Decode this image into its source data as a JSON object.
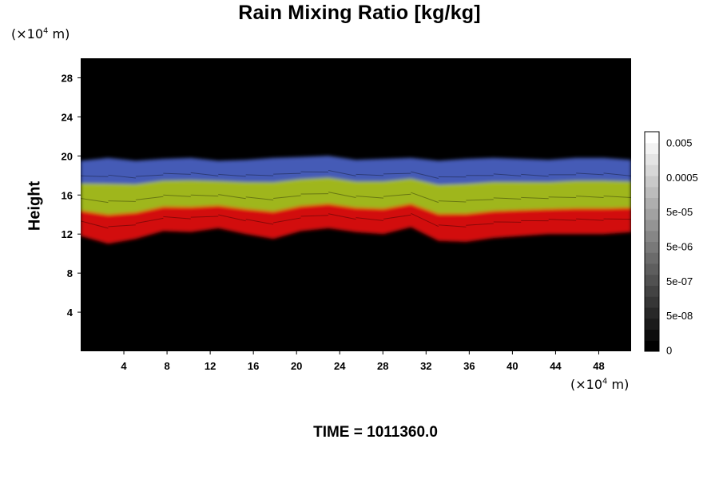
{
  "chart_data": {
    "type": "heatmap",
    "title": "Rain Mixing Ratio [kg/kg]",
    "ylabel": "Height",
    "xlabel": "",
    "x_unit_prefix": "(×10",
    "x_unit_exp": "4",
    "x_unit_suffix": " m)",
    "y_unit_prefix": "(×10",
    "y_unit_exp": "4",
    "y_unit_suffix": " m)",
    "xlim": [
      0,
      51
    ],
    "ylim": [
      0,
      30
    ],
    "xticks": [
      4,
      8,
      12,
      16,
      20,
      24,
      28,
      32,
      36,
      40,
      44,
      48
    ],
    "yticks": [
      4,
      8,
      12,
      16,
      20,
      24,
      28
    ],
    "colorbar": {
      "labels": [
        "0.005",
        "0.0005",
        "5e-05",
        "5e-06",
        "5e-07",
        "5e-08",
        "0"
      ],
      "levels": 20,
      "colors": [
        "#000000",
        "#ffffff"
      ]
    },
    "layer_colors": {
      "background": "#000000",
      "lower": "#dd1111",
      "middle": "#a8c01a",
      "upper": "#4a5fc0"
    },
    "bands_bottom_height": [
      11.8,
      11.0,
      11.5,
      12.3,
      12.2,
      12.6,
      12.0,
      11.5,
      12.3,
      12.6,
      12.2,
      12.0,
      12.7,
      11.3,
      11.2,
      11.6,
      11.8,
      12.0,
      12.0,
      12.0,
      12.2
    ],
    "bands_top_height": [
      19.5,
      19.8,
      19.5,
      19.7,
      19.8,
      19.5,
      19.6,
      19.8,
      19.9,
      20.0,
      19.6,
      19.7,
      19.8,
      19.5,
      19.7,
      19.8,
      19.7,
      19.6,
      19.8,
      19.8,
      19.6
    ]
  },
  "footer": {
    "time_label": "TIME = 1011360.0"
  }
}
